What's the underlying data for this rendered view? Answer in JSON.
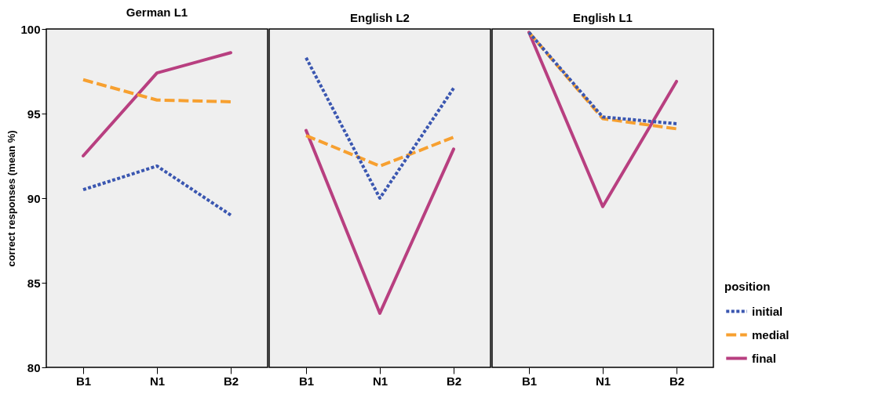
{
  "chart_data": [
    {
      "type": "line",
      "title": "German L1",
      "ylabel": "correct responses (mean %)",
      "categories": [
        "B1",
        "N1",
        "B2"
      ],
      "ylim": [
        80,
        100
      ],
      "yticks": [
        80,
        85,
        90,
        95,
        100
      ],
      "grid": false,
      "legend": "bottom right",
      "legend_title": "position",
      "series": [
        {
          "name": "initial",
          "color": "#3a56b0",
          "line_style": "dotted",
          "values": [
            90.5,
            91.9,
            89.0
          ]
        },
        {
          "name": "medial",
          "color": "#f7a030",
          "line_style": "dashed",
          "values": [
            97.0,
            95.8,
            95.7
          ]
        },
        {
          "name": "final",
          "color": "#b83f80",
          "line_style": "solid",
          "values": [
            92.5,
            97.4,
            98.6
          ]
        }
      ]
    },
    {
      "type": "line",
      "title": "English L2",
      "categories": [
        "B1",
        "N1",
        "B2"
      ],
      "ylim": [
        80,
        100
      ],
      "yticks": [
        80,
        85,
        90,
        95,
        100
      ],
      "tick_labels": "x",
      "grid": false,
      "series": [
        {
          "name": "initial",
          "color": "#3a56b0",
          "line_style": "dotted",
          "values": [
            98.3,
            90.0,
            96.5
          ]
        },
        {
          "name": "medial",
          "color": "#f7a030",
          "line_style": "dashed",
          "values": [
            93.7,
            91.9,
            93.6
          ]
        },
        {
          "name": "final",
          "color": "#b83f80",
          "line_style": "solid",
          "values": [
            94.0,
            83.2,
            92.9
          ]
        }
      ]
    },
    {
      "type": "line",
      "title": "English L1",
      "categories": [
        "B1",
        "N1",
        "B2"
      ],
      "ylim": [
        80,
        100
      ],
      "yticks": [
        80,
        85,
        90,
        95,
        100
      ],
      "tick_labels": "x",
      "grid": false,
      "series": [
        {
          "name": "initial",
          "color": "#3a56b0",
          "line_style": "dotted",
          "values": [
            99.8,
            94.8,
            94.4
          ]
        },
        {
          "name": "medial",
          "color": "#f7a030",
          "line_style": "dashed",
          "values": [
            99.8,
            94.7,
            94.1
          ]
        },
        {
          "name": "final",
          "color": "#b83f80",
          "line_style": "solid",
          "values": [
            99.8,
            89.5,
            96.9
          ]
        }
      ]
    }
  ]
}
